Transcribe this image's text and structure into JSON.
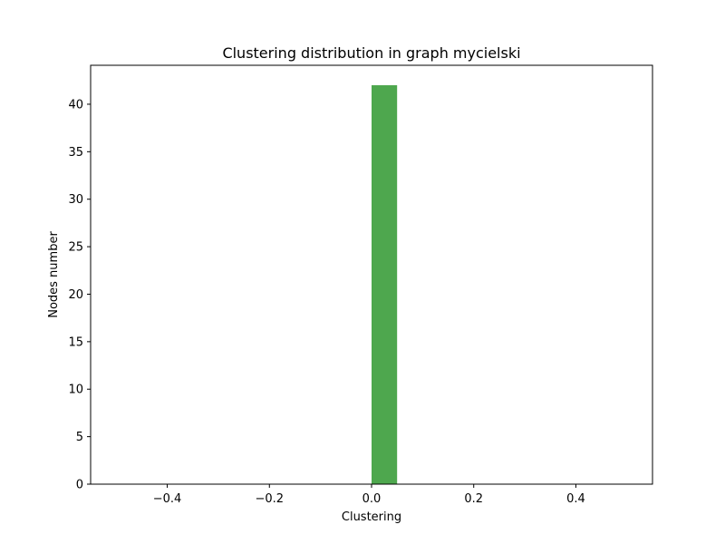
{
  "chart_data": {
    "type": "bar",
    "title": "Clustering distribution in graph mycielski",
    "xlabel": "Clustering",
    "ylabel": "Nodes number",
    "xlim": [
      -0.55,
      0.55
    ],
    "ylim": [
      0,
      44.1
    ],
    "x_ticks": [
      -0.4,
      -0.2,
      0.0,
      0.2,
      0.4
    ],
    "x_tick_labels": [
      "−0.4",
      "−0.2",
      "0.0",
      "0.2",
      "0.4"
    ],
    "y_ticks": [
      0,
      5,
      10,
      15,
      20,
      25,
      30,
      35,
      40
    ],
    "y_tick_labels": [
      "0",
      "5",
      "10",
      "15",
      "20",
      "25",
      "30",
      "35",
      "40"
    ],
    "bars": [
      {
        "x_start": 0.0,
        "x_end": 0.05,
        "value": 42
      }
    ],
    "bar_color": "#4ea74e",
    "grid": false,
    "legend": "none"
  }
}
